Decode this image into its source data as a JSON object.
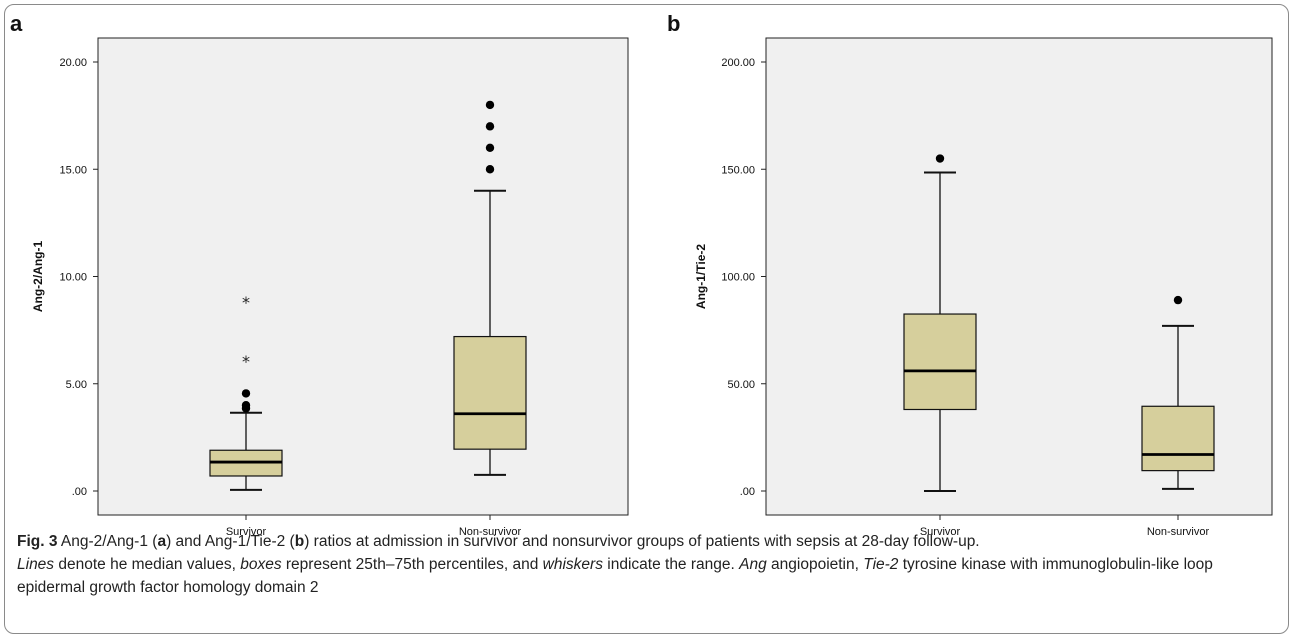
{
  "chart_data": [
    {
      "type": "box",
      "panel_label": "a",
      "ylabel": "Ang-2/Ang-1",
      "ylim": [
        0,
        20
      ],
      "yticks": [
        0,
        5,
        10,
        15,
        20
      ],
      "ytick_labels": [
        ".00",
        "5.00",
        "10.00",
        "15.00",
        "20.00"
      ],
      "categories": [
        "Survivor",
        "Non-survivor"
      ],
      "boxes": [
        {
          "category": "Survivor",
          "whisker_low": 0.05,
          "q1": 0.7,
          "median": 1.35,
          "q3": 1.9,
          "whisker_high": 3.65,
          "outliers": [
            3.85,
            4.0,
            4.55
          ],
          "extremes": [
            6.1,
            8.85
          ]
        },
        {
          "category": "Non-survivor",
          "whisker_low": 0.75,
          "q1": 1.95,
          "median": 3.6,
          "q3": 7.2,
          "whisker_high": 14.0,
          "outliers": [
            15.0,
            16.0,
            17.0,
            18.0
          ],
          "extremes": []
        }
      ],
      "box_color": "#d6cf9c"
    },
    {
      "type": "box",
      "panel_label": "b",
      "ylabel": "Ang-1/Tie-2",
      "ylim": [
        0,
        200
      ],
      "yticks": [
        0,
        50,
        100,
        150,
        200
      ],
      "ytick_labels": [
        ".00",
        "50.00",
        "100.00",
        "150.00",
        "200.00"
      ],
      "categories": [
        "Survivor",
        "Non-survivor"
      ],
      "boxes": [
        {
          "category": "Survivor",
          "whisker_low": 0,
          "q1": 38,
          "median": 56,
          "q3": 82.5,
          "whisker_high": 148.5,
          "outliers": [
            155
          ],
          "extremes": []
        },
        {
          "category": "Non-survivor",
          "whisker_low": 1,
          "q1": 9.5,
          "median": 17,
          "q3": 39.5,
          "whisker_high": 77,
          "outliers": [
            89
          ],
          "extremes": []
        }
      ],
      "box_color": "#d6cf9c"
    }
  ],
  "caption": {
    "fig_label": "Fig. 3",
    "line1_a": " Ang-2/Ang-1 (",
    "a": "a",
    "line1_b": ") and Ang-1/Tie-2 (",
    "b": "b",
    "line1_c": ") ratios at admission in survivor and nonsurvivor groups of patients with sepsis at 28-day follow-up.",
    "lines_em": "Lines",
    "t1": " denote he median values, ",
    "boxes_em": "boxes",
    "t2": " represent 25th–75th percentiles, and ",
    "whiskers_em": "whiskers",
    "t3": " indicate the range. ",
    "ang_em": "Ang",
    "t4": " angiopoietin, ",
    "tie_em": "Tie-2",
    "t5": " tyrosine kinase with immunoglobulin-like loop epidermal growth factor homology domain 2"
  },
  "colors": {
    "plot_bg": "#f0f0f0",
    "box_fill": "#d6cf9c",
    "border": "#8a8a8a"
  }
}
